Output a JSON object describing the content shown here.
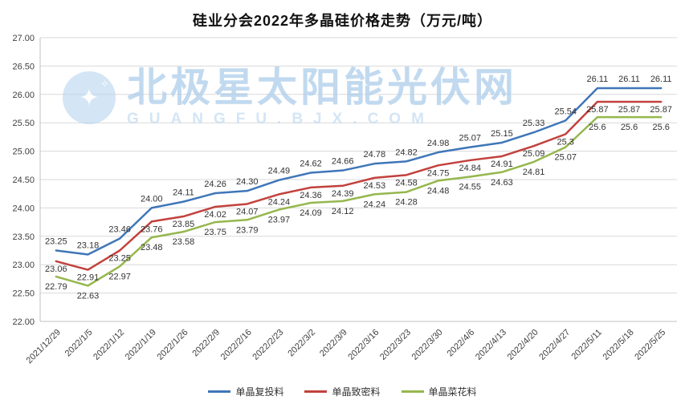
{
  "title": "硅业分会2022年多晶硅价格走势（万元/吨）",
  "watermark": {
    "logo_icon": "✦",
    "logo_icon_small": "✧",
    "line1": "北极星太阳能光伏网",
    "line2": "GUANGFU.BJX.COM"
  },
  "chart_data": {
    "type": "line",
    "title": "硅业分会2022年多晶硅价格走势（万元/吨）",
    "x": [
      "2021/12/29",
      "2022/1/5",
      "2022/1/12",
      "2022/1/19",
      "2022/1/26",
      "2022/2/9",
      "2022/2/16",
      "2022/2/23",
      "2022/3/2",
      "2022/3/9",
      "2022/3/16",
      "2022/3/23",
      "2022/3/30",
      "2022/4/6",
      "2022/4/13",
      "2022/4/20",
      "2022/4/27",
      "2022/5/11",
      "2022/5/18",
      "2022/5/25"
    ],
    "ylim": [
      22,
      27
    ],
    "grid": true,
    "legend_position": "bottom",
    "yticks": [
      {
        "v": 22.0,
        "label": "22.00"
      },
      {
        "v": 22.5,
        "label": "22.50"
      },
      {
        "v": 23.0,
        "label": "23.00"
      },
      {
        "v": 23.5,
        "label": "23.50"
      },
      {
        "v": 24.0,
        "label": "24.00"
      },
      {
        "v": 24.5,
        "label": "24.50"
      },
      {
        "v": 25.0,
        "label": "25.00"
      },
      {
        "v": 25.5,
        "label": "25.50"
      },
      {
        "v": 26.0,
        "label": "26.00"
      },
      {
        "v": 26.5,
        "label": "26.50"
      },
      {
        "v": 27.0,
        "label": "27.00"
      }
    ],
    "series": [
      {
        "name": "单晶复投料",
        "color": "#3f76b8",
        "values": [
          23.25,
          23.18,
          23.46,
          24.0,
          24.11,
          24.26,
          24.3,
          24.49,
          24.62,
          24.66,
          24.78,
          24.82,
          24.98,
          25.07,
          25.15,
          25.33,
          25.54,
          26.11,
          26.11,
          26.11
        ],
        "labels": [
          "23.25",
          "23.18",
          "23.46",
          "24.00",
          "24.11",
          "24.26",
          "24.30",
          "24.49",
          "24.62",
          "24.66",
          "24.78",
          "24.82",
          "24.98",
          "25.07",
          "25.15",
          "25.33",
          "25.54",
          "26.11",
          "26.11",
          "26.11"
        ]
      },
      {
        "name": "单晶致密料",
        "color": "#c2413d",
        "values": [
          23.06,
          22.91,
          23.25,
          23.76,
          23.85,
          24.02,
          24.07,
          24.24,
          24.36,
          24.39,
          24.53,
          24.58,
          24.75,
          24.84,
          24.91,
          25.09,
          25.3,
          25.87,
          25.87,
          25.87
        ],
        "labels": [
          "23.06",
          "22.91",
          "23.25",
          "23.76",
          "23.85",
          "24.02",
          "24.07",
          "24.24",
          "24.36",
          "24.39",
          "24.53",
          "24.58",
          "24.75",
          "24.84",
          "24.91",
          "25.09",
          "25.3",
          "25.87",
          "25.87",
          "25.87"
        ]
      },
      {
        "name": "单晶菜花料",
        "color": "#95b74d",
        "values": [
          22.79,
          22.63,
          22.97,
          23.48,
          23.58,
          23.75,
          23.79,
          23.97,
          24.09,
          24.12,
          24.24,
          24.28,
          24.48,
          24.55,
          24.63,
          24.81,
          25.07,
          25.6,
          25.6,
          25.6
        ],
        "labels": [
          "22.79",
          "22.63",
          "22.97",
          "23.48",
          "23.58",
          "23.75",
          "23.79",
          "23.97",
          "24.09",
          "24.12",
          "24.24",
          "24.28",
          "24.48",
          "24.55",
          "24.63",
          "24.81",
          "25.07",
          "25.6",
          "25.6",
          "25.6"
        ]
      }
    ]
  }
}
